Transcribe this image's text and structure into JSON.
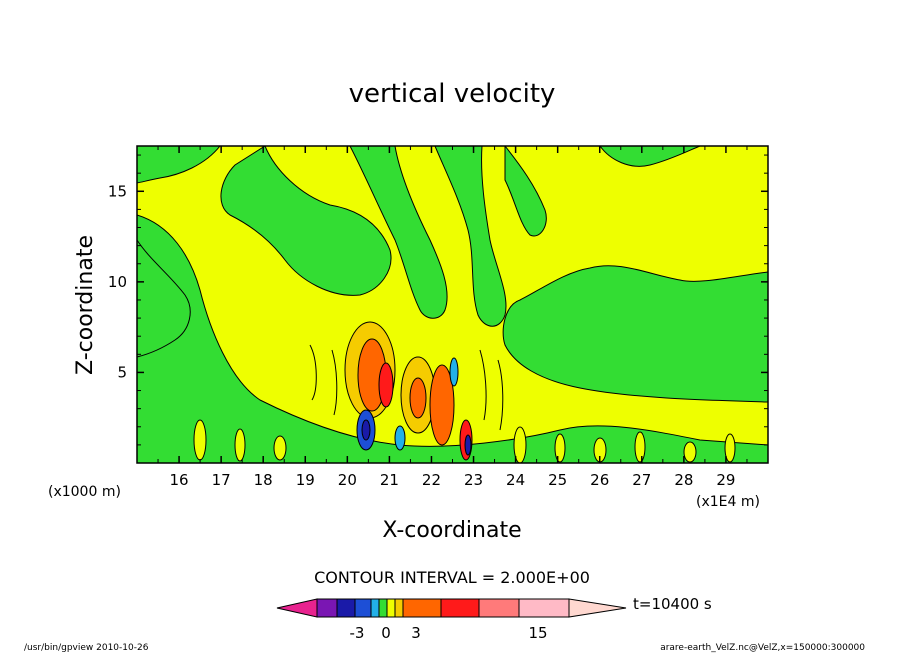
{
  "chart_data": {
    "type": "heatmap",
    "title": "vertical velocity",
    "xlabel": "X-coordinate",
    "ylabel": "Z-coordinate",
    "x_units": "(x1E4 m)",
    "y_units": "(x1000 m)",
    "x_ticks": [
      "16",
      "17",
      "18",
      "19",
      "20",
      "21",
      "22",
      "23",
      "24",
      "25",
      "26",
      "27",
      "28",
      "29"
    ],
    "y_ticks": [
      "5",
      "10",
      "15"
    ],
    "xlim": [
      15.0,
      30.0
    ],
    "ylim": [
      0.0,
      17.5
    ],
    "contour_interval_text": "CONTOUR INTERVAL = 2.000E+00",
    "colorbar": {
      "levels": [
        -3,
        -1,
        1,
        3,
        5,
        7,
        9,
        11,
        15
      ],
      "tick_labels": [
        "-3",
        "0",
        "3",
        "15"
      ],
      "colors": [
        "#e8238f",
        "#7a16b3",
        "#1a1aa8",
        "#1d4fd6",
        "#22b0e8",
        "#33dd33",
        "#eeff00",
        "#f5cc00",
        "#ff6600",
        "#ff1a1a",
        "#ff7a7a",
        "#ffbac6",
        "#ffd8d0"
      ]
    },
    "time_label": "t=10400 s"
  },
  "footer": {
    "left": "/usr/bin/gpview  2010-10-26",
    "right": "arare-earth_VelZ.nc@VelZ,x=150000:300000"
  }
}
